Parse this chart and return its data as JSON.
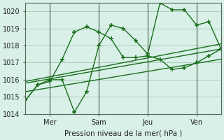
{
  "background_color": "#d8f0e8",
  "grid_color": "#aacfb8",
  "line_color": "#1a6e1a",
  "marker": "+",
  "xlabel": "Pression niveau de la mer( hPa )",
  "ylim": [
    1014,
    1020.5
  ],
  "xlim": [
    0,
    96
  ],
  "yticks": [
    1014,
    1015,
    1016,
    1017,
    1018,
    1019,
    1020
  ],
  "xticks": [
    12,
    36,
    60,
    84
  ],
  "xticklabels": [
    "Mer",
    "Sam",
    "Jeu",
    "Ven"
  ],
  "vlines": [
    12,
    36,
    60,
    84
  ],
  "series1_x": [
    0,
    6,
    12,
    18,
    24,
    30,
    36,
    42,
    48,
    54,
    60,
    66,
    72,
    78,
    84,
    90,
    96
  ],
  "series1_y": [
    1014.8,
    1015.7,
    1016.0,
    1016.0,
    1014.1,
    1015.3,
    1018.0,
    1019.2,
    1019.0,
    1018.3,
    1017.5,
    1020.5,
    1020.1,
    1020.1,
    1019.2,
    1019.4,
    1017.8
  ],
  "series2_x": [
    0,
    6,
    12,
    18,
    24,
    30,
    36,
    42,
    48,
    54,
    60,
    66,
    72,
    78,
    84,
    90,
    96
  ],
  "series2_y": [
    1014.8,
    1015.7,
    1015.9,
    1017.2,
    1018.8,
    1019.1,
    1018.8,
    1018.4,
    1017.3,
    1017.3,
    1017.4,
    1017.2,
    1016.6,
    1016.7,
    1017.0,
    1017.4,
    1017.8
  ],
  "trend1_x": [
    0,
    96
  ],
  "trend1_y": [
    1015.8,
    1017.8
  ],
  "trend2_x": [
    0,
    96
  ],
  "trend2_y": [
    1015.3,
    1017.2
  ],
  "trend3_x": [
    0,
    96
  ],
  "trend3_y": [
    1015.9,
    1018.1
  ]
}
